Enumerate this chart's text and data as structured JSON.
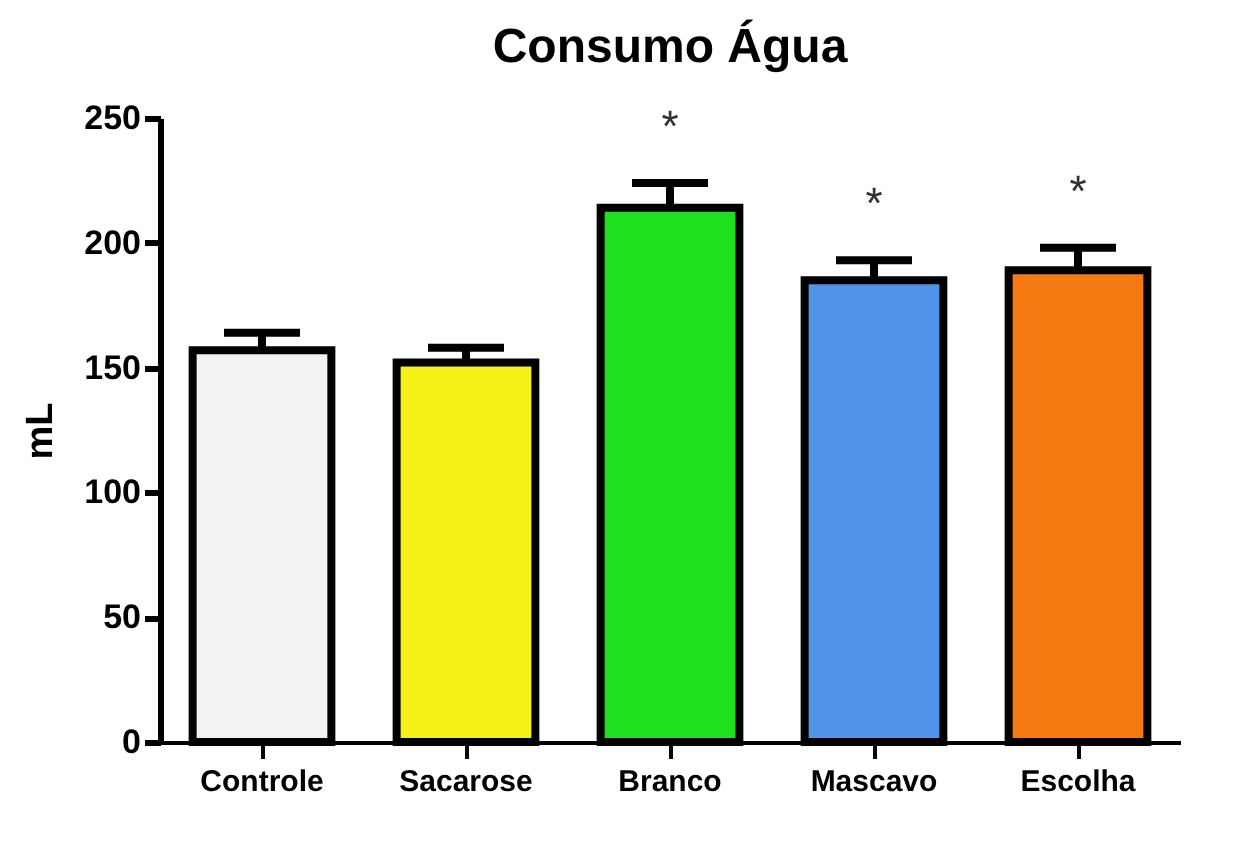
{
  "chart_data": {
    "type": "bar",
    "title": "Consumo Água",
    "ylabel": "mL",
    "categories": [
      "Controle",
      "Sacarose",
      "Branco",
      "Mascavo",
      "Escolha"
    ],
    "values": [
      157,
      152,
      214,
      185,
      189
    ],
    "errors": [
      [
        157,
        164
      ],
      [
        152,
        158
      ],
      [
        214,
        224
      ],
      [
        185,
        193
      ],
      [
        189,
        198
      ]
    ],
    "colors": [
      "#f2f2f2",
      "#f5f016",
      "#1fe01f",
      "#4f94e6",
      "#f57a12"
    ],
    "ylim": [
      0,
      250
    ],
    "yticks": [
      0,
      50,
      100,
      150,
      200,
      250
    ],
    "grid": false,
    "annotations": [
      {
        "text": "*",
        "x": "Branco",
        "y": 224
      },
      {
        "text": "*",
        "x": "Mascavo",
        "y": 193
      },
      {
        "text": "*",
        "x": "Escolha",
        "y": 198
      }
    ]
  }
}
